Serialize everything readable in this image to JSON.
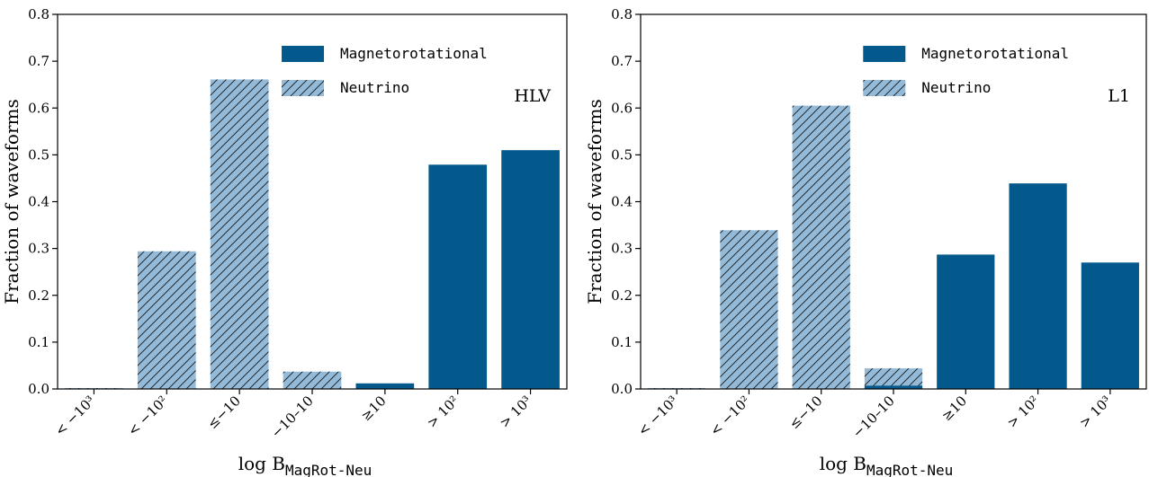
{
  "colors": {
    "magnetorotational": "#03598c",
    "neutrino": "#93bad8",
    "axis": "#000000"
  },
  "chart_data": [
    {
      "type": "bar",
      "panel_label": "HLV",
      "categories": [
        "< −10³",
        "< −10²",
        "≤−10",
        "−10–10",
        "≥10",
        "> 10²",
        "> 10³"
      ],
      "series": [
        {
          "name": "Magnetorotational",
          "pattern": "solid",
          "values": [
            0.0,
            0.0,
            0.0,
            0.0,
            0.012,
            0.479,
            0.51
          ]
        },
        {
          "name": "Neutrino",
          "pattern": "hatched",
          "values": [
            0.002,
            0.294,
            0.661,
            0.037,
            0.0,
            0.0,
            0.0
          ]
        }
      ],
      "xlabel": {
        "prefix": "log B",
        "subscript": "MagRot-Neu"
      },
      "ylabel": "Fraction of waveforms",
      "ylim": [
        0,
        0.8
      ],
      "yticks": [
        "0.0",
        "0.1",
        "0.2",
        "0.3",
        "0.4",
        "0.5",
        "0.6",
        "0.7",
        "0.8"
      ],
      "legend_position": "upper-right",
      "grid": false
    },
    {
      "type": "bar",
      "panel_label": "L1",
      "categories": [
        "< −10³",
        "< −10²",
        "≤−10",
        "−10–10",
        "≥10",
        "> 10²",
        "> 10³"
      ],
      "series": [
        {
          "name": "Magnetorotational",
          "pattern": "solid",
          "values": [
            0.0,
            0.0,
            0.0,
            0.007,
            0.287,
            0.439,
            0.27
          ]
        },
        {
          "name": "Neutrino",
          "pattern": "hatched",
          "values": [
            0.002,
            0.339,
            0.605,
            0.044,
            0.0,
            0.0,
            0.0
          ]
        }
      ],
      "xlabel": {
        "prefix": "log B",
        "subscript": "MagRot-Neu"
      },
      "ylabel": "Fraction of waveforms",
      "ylim": [
        0,
        0.8
      ],
      "yticks": [
        "0.0",
        "0.1",
        "0.2",
        "0.3",
        "0.4",
        "0.5",
        "0.6",
        "0.7",
        "0.8"
      ],
      "legend_position": "upper-right",
      "grid": false
    }
  ]
}
